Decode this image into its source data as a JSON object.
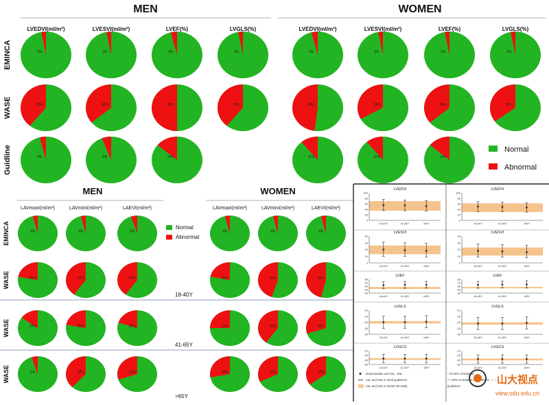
{
  "colors": {
    "normal": "#22b422",
    "abnormal": "#ee1111",
    "band": "#f5c48d",
    "marker": "#333333"
  },
  "top": {
    "men_title": "MEN",
    "women_title": "WOMEN",
    "columns": [
      "LVEDVI(ml/m²)",
      "LVESVI(ml/m²)",
      "LVEF(%)",
      "LVGLS(%)"
    ],
    "rows": [
      "EMINCA",
      "WASE",
      "Guidline"
    ],
    "legend": {
      "normal": "Normal",
      "abnormal": "Abnormal"
    }
  },
  "bottom": {
    "men_title": "MEN",
    "women_title": "WOMEN",
    "columns": [
      "LAVmaxI(ml/m²)",
      "LAVminI(ml/m²)",
      "LAEVI(ml/m²)"
    ],
    "rows": [
      "EMINCA",
      "WASE",
      "WASE",
      "WASE"
    ],
    "age_labels": [
      "18-40Y",
      "41-65Y",
      ">65Y"
    ],
    "legend": {
      "normal": "Normal",
      "abnormal": "Abnormal"
    }
  },
  "panels": {
    "titles": [
      "LVEDVI",
      "LVEDVI",
      "LVESVI",
      "LVESVI",
      "LVEF",
      "LVEF",
      "LVGLS",
      "LVGLS",
      "LVGCS",
      "LVGCS"
    ],
    "x_labels": [
      "18-40Y",
      "41-65Y",
      ">65Y"
    ],
    "y_ticks": [
      [
        "100",
        "80",
        "60",
        "40",
        "20",
        "0"
      ],
      [
        "100",
        "80",
        "60",
        "40",
        "20",
        "0"
      ],
      [
        "40",
        "30",
        "20",
        "10",
        "0"
      ],
      [
        "40",
        "30",
        "20",
        "10",
        "0"
      ],
      [
        "80",
        "70",
        "60",
        "50",
        "40"
      ],
      [
        "80",
        "70",
        "60",
        "50",
        "40"
      ],
      [
        "-10",
        "-15",
        "-20",
        "-25",
        "-30"
      ],
      [
        "-10",
        "-15",
        "-20",
        "-25",
        "-30"
      ],
      [
        "-10",
        "-20",
        "-30",
        "-40"
      ],
      [
        "-10",
        "-20",
        "-30",
        "-40"
      ]
    ],
    "legend_lines": [
      "Mean/median and LNL, UNL",
      "LNL and UNL in 2015 guidelines",
      "LNL and UNL in WASE 3D study",
      "* 10-20% of subjects",
      "** >20% of subjects of the WASE range",
      "guidelines"
    ]
  },
  "watermark": {
    "brand": "山大视点",
    "url": "view.sdu.edu.cn"
  },
  "chart_data": [
    {
      "type": "pie",
      "title": "Top block: percentage of normal / abnormal (MEN | WOMEN)",
      "categories": [
        "Normal",
        "Abnormal"
      ],
      "series": [
        {
          "name": "MEN EMINCA LVEDVI(ml/m²)",
          "values": [
            97,
            3
          ]
        },
        {
          "name": "MEN EMINCA LVESVI(ml/m²)",
          "values": [
            97,
            3
          ]
        },
        {
          "name": "MEN EMINCA LVEF(%)",
          "values": [
            96,
            4
          ]
        },
        {
          "name": "MEN EMINCA LVGLS(%)",
          "values": [
            97,
            3
          ]
        },
        {
          "name": "MEN WASE LVEDVI(ml/m²)",
          "values": [
            61,
            39
          ]
        },
        {
          "name": "MEN WASE LVESVI(ml/m²)",
          "values": [
            64,
            36
          ]
        },
        {
          "name": "MEN WASE LVEF(%)",
          "values": [
            50,
            50
          ]
        },
        {
          "name": "MEN WASE LVGLS(%)",
          "values": [
            61,
            39
          ]
        },
        {
          "name": "MEN Guidline LVEDVI(ml/m²)",
          "values": [
            96,
            4
          ]
        },
        {
          "name": "MEN Guidline LVESVI(ml/m²)",
          "values": [
            94,
            6
          ]
        },
        {
          "name": "MEN Guidline LVEF(%)",
          "values": [
            86,
            14
          ]
        },
        {
          "name": "WOMEN EMINCA LVEDVI(ml/m²)",
          "values": [
            96,
            4
          ]
        },
        {
          "name": "WOMEN EMINCA LVESVI(ml/m²)",
          "values": [
            97,
            3
          ]
        },
        {
          "name": "WOMEN EMINCA LVEF(%)",
          "values": [
            97,
            3
          ]
        },
        {
          "name": "WOMEN EMINCA LVGLS(%)",
          "values": [
            97,
            3
          ]
        },
        {
          "name": "WOMEN WASE LVEDVI(ml/m²)",
          "values": [
            52,
            48
          ]
        },
        {
          "name": "WOMEN WASE LVESVI(ml/m²)",
          "values": [
            67,
            33
          ]
        },
        {
          "name": "WOMEN WASE LVEF(%)",
          "values": [
            64,
            36
          ]
        },
        {
          "name": "WOMEN WASE LVGLS(%)",
          "values": [
            65,
            35
          ]
        },
        {
          "name": "WOMEN Guidline LVEDVI(ml/m²)",
          "values": [
            89,
            11
          ]
        },
        {
          "name": "WOMEN Guidline LVESVI(ml/m²)",
          "values": [
            89,
            11
          ]
        },
        {
          "name": "WOMEN Guidline LVEF(%)",
          "values": [
            86,
            14
          ]
        }
      ]
    },
    {
      "type": "pie",
      "title": "Bottom block: percentage of normal / abnormal (MEN | WOMEN)",
      "categories": [
        "Normal",
        "Abnormal"
      ],
      "series": [
        {
          "name": "MEN EMINCA LAVmaxI(ml/m²)",
          "values": [
            96,
            4
          ]
        },
        {
          "name": "MEN EMINCA LAVminI(ml/m²)",
          "values": [
            96,
            4
          ]
        },
        {
          "name": "MEN EMINCA LAEVI(ml/m²)",
          "values": [
            95,
            5
          ]
        },
        {
          "name": "MEN WASE 18-40Y LAVmaxI(ml/m²)",
          "values": [
            78,
            22
          ]
        },
        {
          "name": "MEN WASE 18-40Y LAVminI(ml/m²)",
          "values": [
            60,
            40
          ]
        },
        {
          "name": "MEN WASE 18-40Y LAEVI(ml/m²)",
          "values": [
            60,
            40
          ]
        },
        {
          "name": "MEN WASE 41-65Y LAVmaxI(ml/m²)",
          "values": [
            85,
            15
          ]
        },
        {
          "name": "MEN WASE 41-65Y LAVminI(ml/m²)",
          "values": [
            78,
            22
          ]
        },
        {
          "name": "MEN WASE 41-65Y LAEVI(ml/m²)",
          "values": [
            80,
            20
          ]
        },
        {
          "name": "MEN WASE >65Y LAVmaxI(ml/m²)",
          "values": [
            95,
            5
          ]
        },
        {
          "name": "MEN WASE >65Y LAVminI(ml/m²)",
          "values": [
            62,
            38
          ]
        },
        {
          "name": "MEN WASE >65Y LAEVI(ml/m²)",
          "values": [
            70,
            30
          ]
        },
        {
          "name": "WOMEN EMINCA LAVmaxI(ml/m²)",
          "values": [
            96,
            4
          ]
        },
        {
          "name": "WOMEN EMINCA LAVminI(ml/m²)",
          "values": [
            96,
            4
          ]
        },
        {
          "name": "WOMEN EMINCA LAEVI(ml/m²)",
          "values": [
            96,
            4
          ]
        },
        {
          "name": "WOMEN WASE 18-40Y LAVmaxI(ml/m²)",
          "values": [
            78,
            22
          ]
        },
        {
          "name": "WOMEN WASE 18-40Y LAVminI(ml/m²)",
          "values": [
            55,
            45
          ]
        },
        {
          "name": "WOMEN WASE 18-40Y LAEVI(ml/m²)",
          "values": [
            54,
            46
          ]
        },
        {
          "name": "WOMEN WASE 41-65Y LAVmaxI(ml/m²)",
          "values": [
            75,
            25
          ]
        },
        {
          "name": "WOMEN WASE 41-65Y LAVminI(ml/m²)",
          "values": [
            60,
            40
          ]
        },
        {
          "name": "WOMEN WASE 41-65Y LAEVI(ml/m²)",
          "values": [
            70,
            30
          ]
        },
        {
          "name": "WOMEN WASE >65Y LAVmaxI(ml/m²)",
          "values": [
            72,
            28
          ]
        },
        {
          "name": "WOMEN WASE >65Y LAVminI(ml/m²)",
          "values": [
            68,
            32
          ]
        },
        {
          "name": "WOMEN WASE >65Y LAEVI(ml/m²)",
          "values": [
            65,
            35
          ]
        }
      ]
    },
    {
      "type": "scatter",
      "title": "Mean/median with LNL-UNL range by age group",
      "x": [
        "18-40Y",
        "41-65Y",
        ">65Y"
      ],
      "series": [
        {
          "name": "LVEDVI",
          "values": [
            55,
            54,
            52
          ],
          "low": [
            36,
            35,
            34
          ],
          "high": [
            76,
            74,
            72
          ],
          "band": [
            35,
            70
          ]
        },
        {
          "name": "LVEDVI",
          "values": [
            50,
            49,
            47
          ],
          "low": [
            32,
            32,
            30
          ],
          "high": [
            68,
            66,
            64
          ],
          "band": [
            30,
            62
          ]
        },
        {
          "name": "LVESVI",
          "values": [
            20,
            19,
            18
          ],
          "low": [
            10,
            10,
            9
          ],
          "high": [
            31,
            30,
            29
          ],
          "band": [
            13,
            26
          ]
        },
        {
          "name": "LVESVI",
          "values": [
            18,
            17,
            16
          ],
          "low": [
            9,
            9,
            8
          ],
          "high": [
            28,
            27,
            26
          ],
          "band": [
            11,
            23
          ]
        },
        {
          "name": "LVEF",
          "values": [
            63,
            64,
            64
          ],
          "low": [
            53,
            54,
            55
          ],
          "high": [
            73,
            74,
            74
          ],
          "band": [
            52,
            58
          ]
        },
        {
          "name": "LVEF",
          "values": [
            64,
            65,
            65
          ],
          "low": [
            54,
            55,
            55
          ],
          "high": [
            74,
            75,
            76
          ],
          "band": [
            54,
            58
          ]
        },
        {
          "name": "LVGLS",
          "values": [
            -20,
            -20,
            -19.5
          ],
          "low": [
            -25,
            -25,
            -24.5
          ],
          "high": [
            -15,
            -15,
            -14.5
          ],
          "band": [
            -21,
            -19
          ]
        },
        {
          "name": "LVGLS",
          "values": [
            -21,
            -21,
            -20.5
          ],
          "low": [
            -26,
            -26,
            -25.5
          ],
          "high": [
            -16,
            -16,
            -15.5
          ],
          "band": [
            -22,
            -20
          ]
        },
        {
          "name": "LVGCS",
          "values": [
            -27,
            -27,
            -27
          ],
          "low": [
            -36,
            -36,
            -36
          ],
          "high": [
            -18,
            -18,
            -18
          ],
          "band": [
            -30,
            -26
          ]
        },
        {
          "name": "LVGCS",
          "values": [
            -28,
            -28,
            -28
          ],
          "low": [
            -37,
            -37,
            -37
          ],
          "high": [
            -19,
            -19,
            -19
          ],
          "band": [
            -31,
            -27
          ]
        }
      ]
    }
  ]
}
